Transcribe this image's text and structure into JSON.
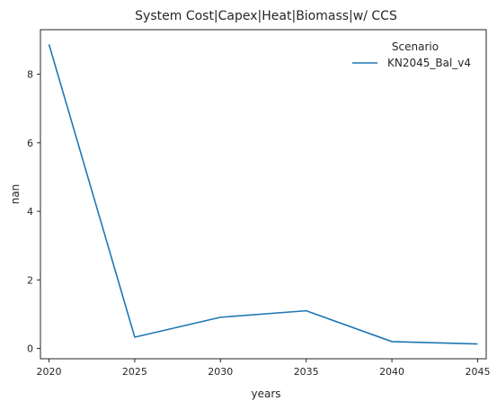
{
  "chart_data": {
    "type": "line",
    "title": "System Cost|Capex|Heat|Biomass|w/ CCS",
    "xlabel": "years",
    "ylabel": "nan",
    "x": [
      2020,
      2025,
      2030,
      2035,
      2040,
      2045
    ],
    "xticks": [
      2020,
      2025,
      2030,
      2035,
      2040,
      2045
    ],
    "yticks": [
      0,
      2,
      4,
      6,
      8
    ],
    "xlim": [
      2019.5,
      2045.5
    ],
    "ylim": [
      -0.3,
      9.3
    ],
    "grid": false,
    "legend": {
      "title": "Scenario",
      "placement": "top-right"
    },
    "series": [
      {
        "name": "KN2045_Bal_v4",
        "color": "#1f77b4",
        "values": [
          8.87,
          0.33,
          0.91,
          1.1,
          0.2,
          0.13
        ]
      }
    ]
  }
}
